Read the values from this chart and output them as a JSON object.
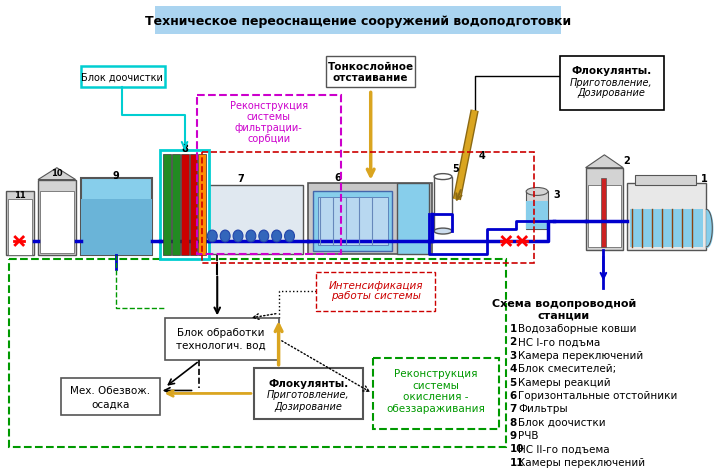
{
  "title": "Техническое переоснащение сооружений водоподготовки",
  "title_bg": "#aad4f0",
  "bg_color": "#ffffff",
  "legend_title": "Схема водопроводной\nстанции",
  "legend_items": [
    "1 Водозаборные ковши",
    "2 НС I-го подъма",
    "3 Камера переключений",
    "4 Блок смесителей;",
    "5 Камеры реакций",
    "6 Горизонтальные отстойники",
    "7 Фильтры",
    "8 Блок доочистки",
    "9 РЧВ",
    "10 НС II-го подъема",
    "11 Камеры переключений"
  ],
  "water_color": "#87CEEB",
  "water_color2": "#6ab4d8",
  "pipe_blue": "#0000CD",
  "cyan_color": "#00CED1",
  "magenta_color": "#CC00CC",
  "red_dashed": "#CC0000",
  "green_dashed": "#009900",
  "yellow_color": "#DAA520",
  "gray_light": "#D3D3D3",
  "gray_med": "#B0B0B0",
  "gray_dark": "#808080",
  "filter_green": "#228B22",
  "filter_red": "#CC0000",
  "filter_orange": "#FF8C00",
  "intensif_color": "#CC0000",
  "box_outline": "#555555"
}
